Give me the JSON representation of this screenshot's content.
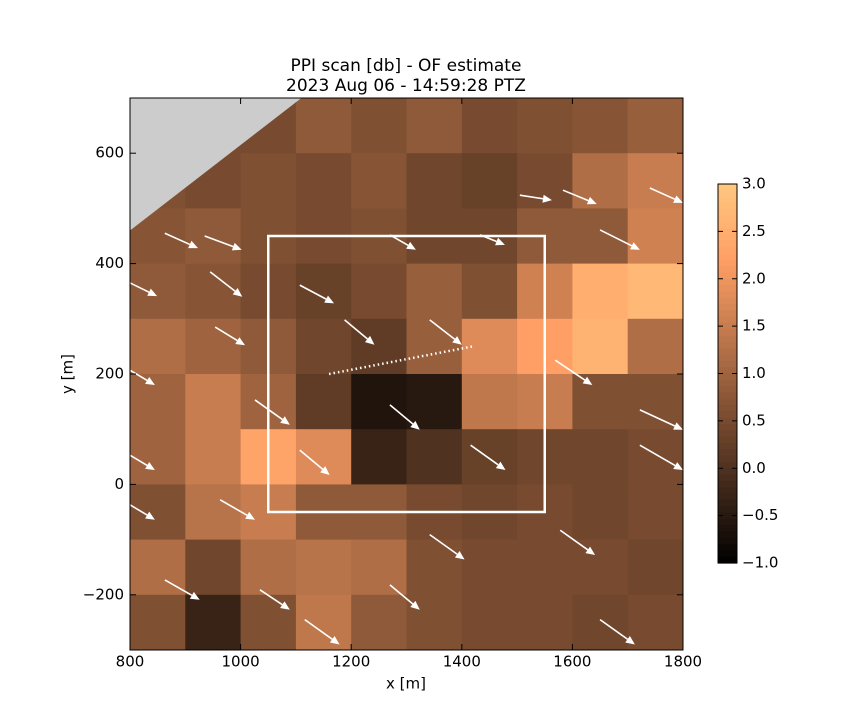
{
  "chart_data": {
    "type": "heatmap-quiver",
    "title": "PPI scan [db] - OF estimate",
    "subtitle": "2023 Aug 06 - 14:59:28 PTZ",
    "x_label": "x [m]",
    "y_label": "y [m]",
    "xlim": [
      800,
      1800
    ],
    "ylim": [
      -300,
      700
    ],
    "xticks": [
      800,
      1000,
      1200,
      1400,
      1600,
      1800
    ],
    "yticks": [
      {
        "value": -200,
        "label": "−200"
      },
      0,
      200,
      400,
      600
    ],
    "colormap": "copper",
    "clim": [
      -1,
      3
    ],
    "cticks": [
      {
        "value": -1,
        "label": "−1.0"
      },
      {
        "value": -0.5,
        "label": "−0.5"
      },
      {
        "value": 0,
        "label": "0.0"
      },
      {
        "value": 0.5,
        "label": "0.5"
      },
      {
        "value": 1,
        "label": "1.0"
      },
      {
        "value": 1.5,
        "label": "1.5"
      },
      {
        "value": 2,
        "label": "2.0"
      },
      {
        "value": 2.5,
        "label": "2.5"
      },
      {
        "value": 3,
        "label": "3.0"
      }
    ],
    "grid_x": [
      850,
      950,
      1050,
      1150,
      1250,
      1350,
      1450,
      1550,
      1650,
      1750
    ],
    "grid_y": [
      650,
      550,
      450,
      350,
      250,
      150,
      50,
      -50,
      -150,
      -250
    ],
    "cell": 100,
    "z": [
      [
        0.5,
        0.5,
        0.5,
        0.8,
        0.6,
        0.8,
        0.5,
        0.6,
        0.7,
        0.9
      ],
      [
        0.6,
        0.5,
        0.6,
        0.5,
        0.7,
        0.4,
        0.3,
        0.5,
        1.2,
        1.5
      ],
      [
        0.7,
        0.8,
        0.6,
        0.5,
        0.6,
        0.4,
        0.4,
        0.8,
        0.8,
        1.6
      ],
      [
        0.8,
        0.7,
        0.5,
        0.3,
        0.5,
        0.9,
        0.6,
        1.6,
        2.5,
        2.7
      ],
      [
        1.2,
        1.0,
        0.8,
        0.4,
        0.2,
        0.9,
        1.8,
        2.2,
        2.6,
        1.2
      ],
      [
        1.0,
        1.5,
        1.0,
        0.2,
        -0.6,
        -0.5,
        1.4,
        1.5,
        0.6,
        0.6
      ],
      [
        1.0,
        1.5,
        2.3,
        1.8,
        -0.3,
        0.0,
        0.3,
        0.4,
        0.4,
        0.5
      ],
      [
        0.6,
        1.3,
        1.5,
        0.8,
        0.8,
        0.5,
        0.4,
        0.5,
        0.4,
        0.5
      ],
      [
        1.2,
        0.4,
        1.2,
        1.3,
        1.2,
        0.6,
        0.5,
        0.5,
        0.5,
        0.4
      ],
      [
        0.6,
        -0.3,
        0.6,
        1.4,
        0.8,
        0.6,
        0.5,
        0.5,
        0.4,
        0.5
      ]
    ],
    "mask": {
      "x": [
        800,
        1110,
        800
      ],
      "y": [
        460,
        700,
        700
      ],
      "color": "#cccccc"
    },
    "box": {
      "x": [
        1050,
        1550
      ],
      "y": [
        -50,
        450
      ]
    },
    "dotted_line": {
      "x": [
        1160,
        1420
      ],
      "y": [
        200,
        250
      ]
    },
    "arrows": {
      "x": [
        863,
        935,
        800,
        945,
        1107,
        1270,
        1433,
        1505,
        1583,
        1740,
        954,
        1188,
        1342,
        800,
        1026,
        1270,
        1569,
        800,
        1107,
        1416,
        1722,
        800,
        963,
        1342,
        1578,
        863,
        1035,
        1270,
        1116,
        1650,
        1722,
        1650
      ],
      "y": [
        455,
        450,
        365,
        385,
        361,
        452,
        452,
        524,
        533,
        537,
        285,
        298,
        298,
        207,
        153,
        144,
        225,
        53,
        62,
        71,
        71,
        -37,
        -28,
        -91,
        -83,
        -173,
        -191,
        -182,
        -245,
        -245,
        135,
        461
      ],
      "u": [
        60,
        67,
        49,
        58,
        62,
        47,
        45,
        58,
        61,
        60,
        54,
        54,
        58,
        45,
        63,
        54,
        67,
        45,
        54,
        63,
        78,
        45,
        63,
        63,
        63,
        63,
        54,
        54,
        63,
        63,
        78,
        72
      ],
      "v": [
        -27,
        -25,
        -24,
        -45,
        -33,
        -27,
        -18,
        -9,
        -25,
        -27,
        -33,
        -45,
        -45,
        -27,
        -45,
        -45,
        -45,
        -27,
        -45,
        -45,
        -45,
        -27,
        -36,
        -45,
        -45,
        -36,
        -36,
        -45,
        -45,
        -45,
        -36,
        -36
      ],
      "color": "#ffffff"
    }
  }
}
